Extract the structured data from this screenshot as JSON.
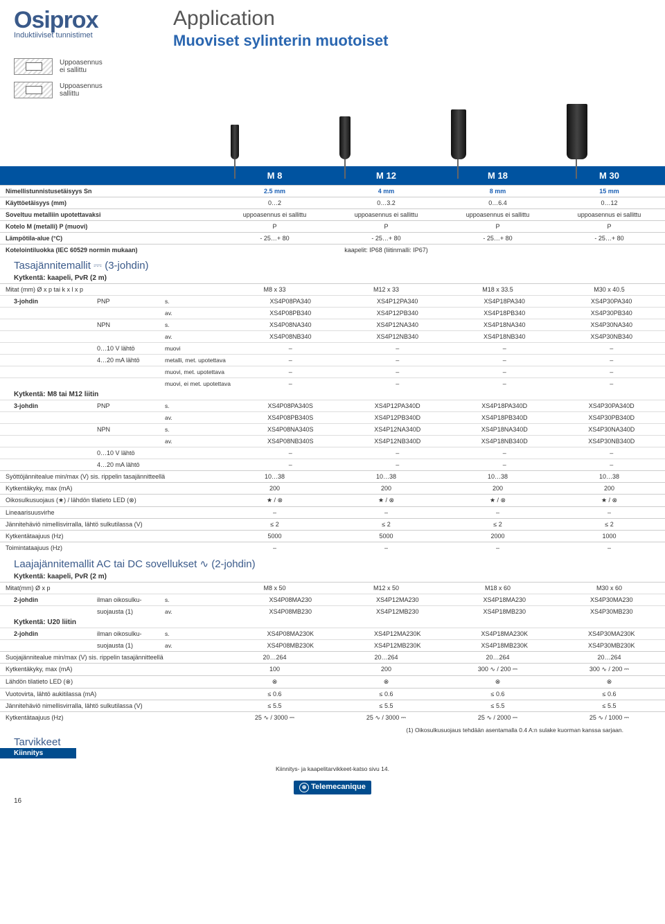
{
  "header": {
    "brand": "Osiprox",
    "brand_sub": "Induktiiviset tunnistimet",
    "app_title": "Application",
    "app_sub": "Muoviset sylinterin muotoiset",
    "install1": "Uppoasennus\nei sallittu",
    "install2": "Uppoasennus\nsallittu"
  },
  "col_labels": [
    "M 8",
    "M 12",
    "M 18",
    "M 30"
  ],
  "specs": [
    {
      "label": "Nimellistunnistusetäisyys Sn",
      "vals": [
        "2.5 mm",
        "4 mm",
        "8 mm",
        "15 mm"
      ],
      "blue": true
    },
    {
      "label": "Käyttöetäisyys (mm)",
      "vals": [
        "0…2",
        "0…3.2",
        "0…6.4",
        "0…12"
      ]
    },
    {
      "label": "Soveltuu metalliin upotettavaksi",
      "vals": [
        "uppoasennus ei sallittu",
        "uppoasennus ei sallittu",
        "uppoasennus ei sallittu",
        "uppoasennus ei sallittu"
      ]
    },
    {
      "label": "Kotelo M (metalli) P (muovi)",
      "vals": [
        "P",
        "P",
        "P",
        "P"
      ]
    },
    {
      "label": "Lämpötila-alue (°C)",
      "vals": [
        "- 25…+ 80",
        "- 25…+ 80",
        "- 25…+ 80",
        "- 25…+ 80"
      ]
    },
    {
      "label": "Kotelointiluokka (IEC 60529 normin mukaan)",
      "vals": [
        "",
        "kaapelit: IP68 (liitinmalli: IP67)",
        "",
        ""
      ]
    }
  ],
  "sec1_title": "Tasajännitemallit ⎓ (3-johdin)",
  "sec1_sub": "Kytkentä: kaapeli, PvR (2 m)",
  "mitat1": {
    "label": "Mitat (mm) Ø x p tai k x l x p",
    "vals": [
      "M8 x 33",
      "M12 x 33",
      "M18 x 33.5",
      "M30 x 40.5"
    ]
  },
  "sec1_rows": [
    {
      "c1": "3-johdin",
      "c2": "PNP",
      "c3": "s.",
      "vals": [
        "XS4P08PA340",
        "XS4P12PA340",
        "XS4P18PA340",
        "XS4P30PA340"
      ]
    },
    {
      "c1": "",
      "c2": "",
      "c3": "av.",
      "vals": [
        "XS4P08PB340",
        "XS4P12PB340",
        "XS4P18PB340",
        "XS4P30PB340"
      ]
    },
    {
      "c1": "",
      "c2": "NPN",
      "c3": "s.",
      "vals": [
        "XS4P08NA340",
        "XS4P12NA340",
        "XS4P18NA340",
        "XS4P30NA340"
      ]
    },
    {
      "c1": "",
      "c2": "",
      "c3": "av.",
      "vals": [
        "XS4P08NB340",
        "XS4P12NB340",
        "XS4P18NB340",
        "XS4P30NB340"
      ]
    },
    {
      "c1": "",
      "c2": "0…10 V lähtö",
      "c3": "muovi",
      "vals": [
        "–",
        "–",
        "–",
        "–"
      ]
    },
    {
      "c1": "",
      "c2": "4…20 mA lähtö",
      "c3": "metalli, met. upotettava",
      "vals": [
        "–",
        "–",
        "–",
        "–"
      ]
    },
    {
      "c1": "",
      "c2": "",
      "c3": "muovi, met. upotettava",
      "vals": [
        "–",
        "–",
        "–",
        "–"
      ]
    },
    {
      "c1": "",
      "c2": "",
      "c3": "muovi, ei met. upotettava",
      "vals": [
        "–",
        "–",
        "–",
        "–"
      ]
    }
  ],
  "sec1b_sub": "Kytkentä: M8 tai M12 liitin",
  "sec1b_rows": [
    {
      "c1": "3-johdin",
      "c2": "PNP",
      "c3": "s.",
      "vals": [
        "XS4P08PA340S",
        "XS4P12PA340D",
        "XS4P18PA340D",
        "XS4P30PA340D"
      ]
    },
    {
      "c1": "",
      "c2": "",
      "c3": "av.",
      "vals": [
        "XS4P08PB340S",
        "XS4P12PB340D",
        "XS4P18PB340D",
        "XS4P30PB340D"
      ]
    },
    {
      "c1": "",
      "c2": "NPN",
      "c3": "s.",
      "vals": [
        "XS4P08NA340S",
        "XS4P12NA340D",
        "XS4P18NA340D",
        "XS4P30NA340D"
      ]
    },
    {
      "c1": "",
      "c2": "",
      "c3": "av.",
      "vals": [
        "XS4P08NB340S",
        "XS4P12NB340D",
        "XS4P18NB340D",
        "XS4P30NB340D"
      ]
    },
    {
      "c1": "",
      "c2": "0…10 V lähtö",
      "c3": "",
      "vals": [
        "–",
        "–",
        "–",
        "–"
      ]
    },
    {
      "c1": "",
      "c2": "4…20 mA lähtö",
      "c3": "",
      "vals": [
        "–",
        "–",
        "–",
        "–"
      ]
    }
  ],
  "sec1_params": [
    {
      "label": "Syöttöjännitealue min/max (V) sis. rippelin tasajännitteellä",
      "vals": [
        "10…38",
        "10…38",
        "10…38",
        "10…38"
      ]
    },
    {
      "label": "Kytkentäkyky, max (mA)",
      "vals": [
        "200",
        "200",
        "200",
        "200"
      ]
    },
    {
      "label": "Oikosulkusuojaus (★) / lähdön tilatieto LED (⊗)",
      "vals": [
        "★ / ⊗",
        "★ / ⊗",
        "★ / ⊗",
        "★ / ⊗"
      ]
    },
    {
      "label": "Lineaarisuusvirhe",
      "vals": [
        "–",
        "–",
        "–",
        "–"
      ]
    },
    {
      "label": "Jännitehäviö nimellisvirralla, lähtö sulkutilassa (V)",
      "vals": [
        "≤ 2",
        "≤ 2",
        "≤ 2",
        "≤ 2"
      ]
    },
    {
      "label": "Kytkentätaajuus (Hz)",
      "vals": [
        "5000",
        "5000",
        "2000",
        "1000"
      ]
    },
    {
      "label": "Toimintataajuus (Hz)",
      "vals": [
        "–",
        "–",
        "–",
        "–"
      ]
    }
  ],
  "sec2_title": "Laajajännitemallit AC tai DC  sovellukset ∿ (2-johdin)",
  "sec2_sub": "Kytkentä: kaapeli, PvR (2 m)",
  "mitat2": {
    "label": "Mitat(mm) Ø x p",
    "vals": [
      "M8 x 50",
      "M12 x 50",
      "M18 x 60",
      "M30 x 60"
    ]
  },
  "sec2_rows": [
    {
      "c1": "2-johdin",
      "c2": "ilman oikosulku-",
      "c3": "s.",
      "vals": [
        "XS4P08MA230",
        "XS4P12MA230",
        "XS4P18MA230",
        "XS4P30MA230"
      ]
    },
    {
      "c1": "",
      "c2": "suojausta (1)",
      "c3": "av.",
      "vals": [
        "XS4P08MB230",
        "XS4P12MB230",
        "XS4P18MB230",
        "XS4P30MB230"
      ]
    }
  ],
  "sec2b_sub": "Kytkentä: U20 liitin",
  "sec2b_rows": [
    {
      "c1": "2-johdin",
      "c2": "ilman oikosulku-",
      "c3": "s.",
      "vals": [
        "XS4P08MA230K",
        "XS4P12MA230K",
        "XS4P18MA230K",
        "XS4P30MA230K"
      ]
    },
    {
      "c1": "",
      "c2": "suojausta (1)",
      "c3": "av.",
      "vals": [
        "XS4P08MB230K",
        "XS4P12MB230K",
        "XS4P18MB230K",
        "XS4P30MB230K"
      ]
    }
  ],
  "sec2_params": [
    {
      "label": "Suojajännitealue min/max (V) sis. rippelin tasajännitteellä",
      "vals": [
        "20…264",
        "20…264",
        "20…264",
        "20…264"
      ]
    },
    {
      "label": "Kytkentäkyky, max (mA)",
      "vals": [
        "100",
        "200",
        "300 ∿ / 200 ⎓",
        "300 ∿ / 200 ⎓"
      ]
    },
    {
      "label": "Lähdön tilatieto LED (⊗)",
      "vals": [
        "⊗",
        "⊗",
        "⊗",
        "⊗"
      ]
    },
    {
      "label": "Vuotovirta, lähtö aukitilassa (mA)",
      "vals": [
        "≤ 0.6",
        "≤ 0.6",
        "≤ 0.6",
        "≤ 0.6"
      ]
    },
    {
      "label": "Jännitehäviö nimellisvirralla, lähtö sulkutilassa (V)",
      "vals": [
        "≤ 5.5",
        "≤ 5.5",
        "≤ 5.5",
        "≤ 5.5"
      ]
    },
    {
      "label": "Kytkentätaajuus (Hz)",
      "vals": [
        "25 ∿ / 3000 ⎓",
        "25 ∿ / 3000 ⎓",
        "25 ∿ / 2000 ⎓",
        "25 ∿ / 1000 ⎓"
      ]
    }
  ],
  "footnote": "(1) Oikosulkusuojaus tehdään asentamalla 0.4 A:n sulake kuorman kanssa sarjaan.",
  "tarvikkeet": "Tarvikkeet",
  "kiinnitys": "Kiinnitys",
  "kiinnitys_note": "Kiinnitys- ja kaapelitarvikkeet-katso sivu 14.",
  "footer_logo": "Telemecanique",
  "page": "16"
}
